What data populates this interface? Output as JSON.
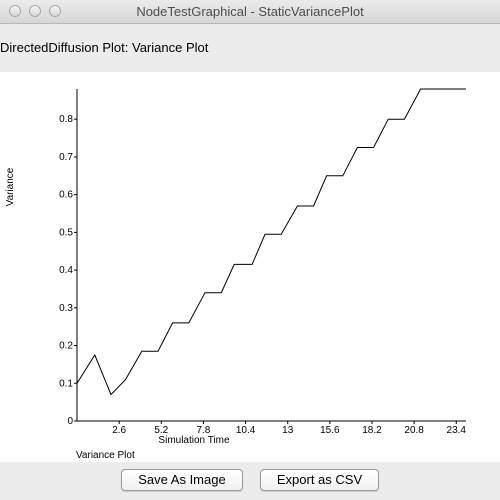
{
  "window": {
    "title": "NodeTestGraphical - StaticVariancePlot"
  },
  "plot_title": "DirectedDiffusion Plot: Variance Plot",
  "footer": {
    "save_label": "Save As Image",
    "export_label": "Export as CSV"
  },
  "chart_data": {
    "type": "line",
    "title": "Variance Plot",
    "xlabel": "Simulation Time",
    "ylabel": "Variance",
    "xlim": [
      0,
      24
    ],
    "ylim": [
      0,
      0.88
    ],
    "x_ticks": [
      2.6,
      5.2,
      7.8,
      10.4,
      13,
      15.6,
      18.2,
      20.8,
      23.4
    ],
    "x_tick_labels": [
      "2.6",
      "5.2",
      "7.8",
      "10.4",
      "13",
      "15.6",
      "18.2",
      "20.8",
      "23.4"
    ],
    "y_ticks": [
      0,
      0.1,
      0.2,
      0.3,
      0.4,
      0.5,
      0.6,
      0.7,
      0.8
    ],
    "y_tick_labels": [
      "0",
      "0.1",
      "0.2",
      "0.3",
      "0.4",
      "0.5",
      "0.6",
      "0.7",
      "0.8"
    ],
    "grid": false,
    "series": [
      {
        "x": [
          0,
          1.1,
          2.1,
          3.0,
          4.0,
          5.0,
          5.9,
          6.9,
          7.9,
          8.9,
          9.7,
          10.8,
          11.6,
          12.6,
          13.6,
          14.6,
          15.4,
          16.4,
          17.3,
          18.3,
          19.2,
          20.2,
          21.2,
          22.2,
          22.9,
          24
        ],
        "y": [
          0.1,
          0.175,
          0.07,
          0.11,
          0.185,
          0.185,
          0.26,
          0.26,
          0.34,
          0.34,
          0.415,
          0.415,
          0.495,
          0.495,
          0.57,
          0.57,
          0.65,
          0.65,
          0.725,
          0.725,
          0.8,
          0.8,
          0.88,
          0.88,
          0.88,
          0.88
        ]
      }
    ]
  }
}
